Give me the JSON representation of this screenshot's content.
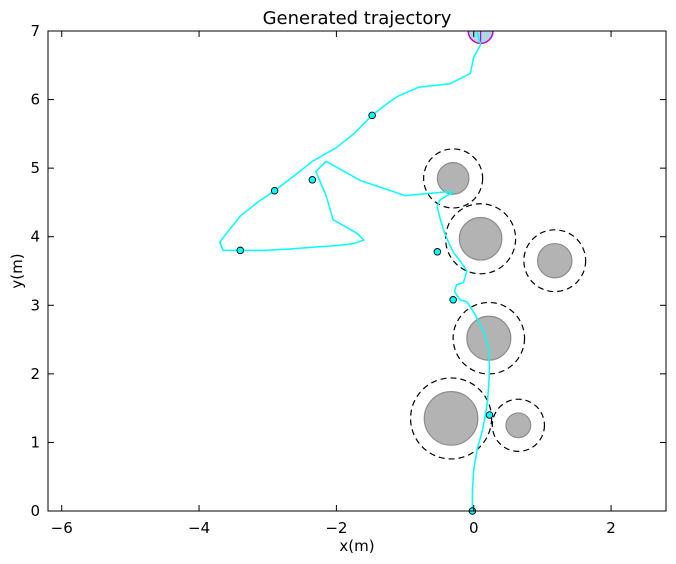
{
  "chart_data": {
    "type": "line",
    "title": "Generated trajectory",
    "xlabel": "x(m)",
    "ylabel": "y(m)",
    "xlim": [
      -6.2,
      2.8
    ],
    "ylim": [
      0,
      7
    ],
    "xticks": [
      -6,
      -4,
      -2,
      0,
      2
    ],
    "yticks": [
      0,
      1,
      2,
      3,
      4,
      5,
      6,
      7
    ],
    "xtick_labels": [
      "−6",
      "−4",
      "−2",
      "0",
      "2"
    ],
    "ytick_labels": [
      "0",
      "1",
      "2",
      "3",
      "4",
      "5",
      "6",
      "7"
    ],
    "grid": false,
    "legend": "none",
    "colors": {
      "trajectory": "#00ffff",
      "obstacle_fill": "#b3b3b3",
      "obstacle_edge": "#8c8c8c",
      "safety_boundary": "#000000",
      "goal_edge": "#cc00cc",
      "goal_fill": "#add8e6"
    },
    "trajectory": {
      "x": [
        -0.02,
        -0.02,
        0.0,
        0.05,
        0.12,
        0.17,
        0.2,
        0.22,
        0.23,
        0.22,
        0.2,
        0.15,
        0.08,
        0.0,
        -0.1,
        -0.2,
        -0.28,
        -0.25,
        -0.15,
        -0.1,
        -0.18,
        -0.3,
        -0.38,
        -0.44,
        -0.5,
        -0.53,
        -0.5,
        -0.42,
        -0.3,
        -0.45,
        -1.0,
        -1.65,
        -2.15,
        -2.3,
        -2.15,
        -2.05,
        -1.7,
        -1.6,
        -1.75,
        -2.0,
        -2.3,
        -2.7,
        -3.05,
        -3.4,
        -3.65,
        -3.7,
        -3.6,
        -3.4,
        -3.15,
        -2.9,
        -2.6,
        -2.35,
        -2.0,
        -1.75,
        -1.48,
        -1.25,
        -1.1,
        -0.8,
        -0.35,
        -0.05,
        0.0,
        0.1,
        0.05
      ],
      "y": [
        0.0,
        0.3,
        0.6,
        0.9,
        1.15,
        1.4,
        1.6,
        1.85,
        2.1,
        2.3,
        2.45,
        2.6,
        2.75,
        2.9,
        3.05,
        3.08,
        3.2,
        3.3,
        3.33,
        3.5,
        3.62,
        3.78,
        3.95,
        4.1,
        4.3,
        4.43,
        4.53,
        4.58,
        4.65,
        4.65,
        4.6,
        4.82,
        5.1,
        4.95,
        4.6,
        4.25,
        4.05,
        3.95,
        3.9,
        3.87,
        3.85,
        3.82,
        3.8,
        3.8,
        3.8,
        3.92,
        4.05,
        4.3,
        4.5,
        4.67,
        4.9,
        5.1,
        5.3,
        5.5,
        5.77,
        5.95,
        6.05,
        6.18,
        6.23,
        6.38,
        6.62,
        6.8,
        6.98
      ]
    },
    "waypoints": {
      "x": [
        -0.02,
        0.23,
        -0.3,
        -0.53,
        -2.35,
        -2.9,
        -3.4,
        -1.48
      ],
      "y": [
        0.0,
        1.4,
        3.08,
        3.78,
        4.83,
        4.67,
        3.8,
        5.77
      ]
    },
    "obstacles": [
      {
        "x": -0.3,
        "y": 4.85,
        "r": 0.23,
        "safe_r": 0.43
      },
      {
        "x": 0.1,
        "y": 3.97,
        "r": 0.31,
        "safe_r": 0.51
      },
      {
        "x": 1.18,
        "y": 3.65,
        "r": 0.25,
        "safe_r": 0.45
      },
      {
        "x": 0.22,
        "y": 2.52,
        "r": 0.32,
        "safe_r": 0.52
      },
      {
        "x": -0.33,
        "y": 1.35,
        "r": 0.39,
        "safe_r": 0.59
      },
      {
        "x": 0.65,
        "y": 1.25,
        "r": 0.18,
        "safe_r": 0.38
      }
    ],
    "goal": {
      "x": 0.1,
      "y": 7.0,
      "r": 0.18
    }
  }
}
